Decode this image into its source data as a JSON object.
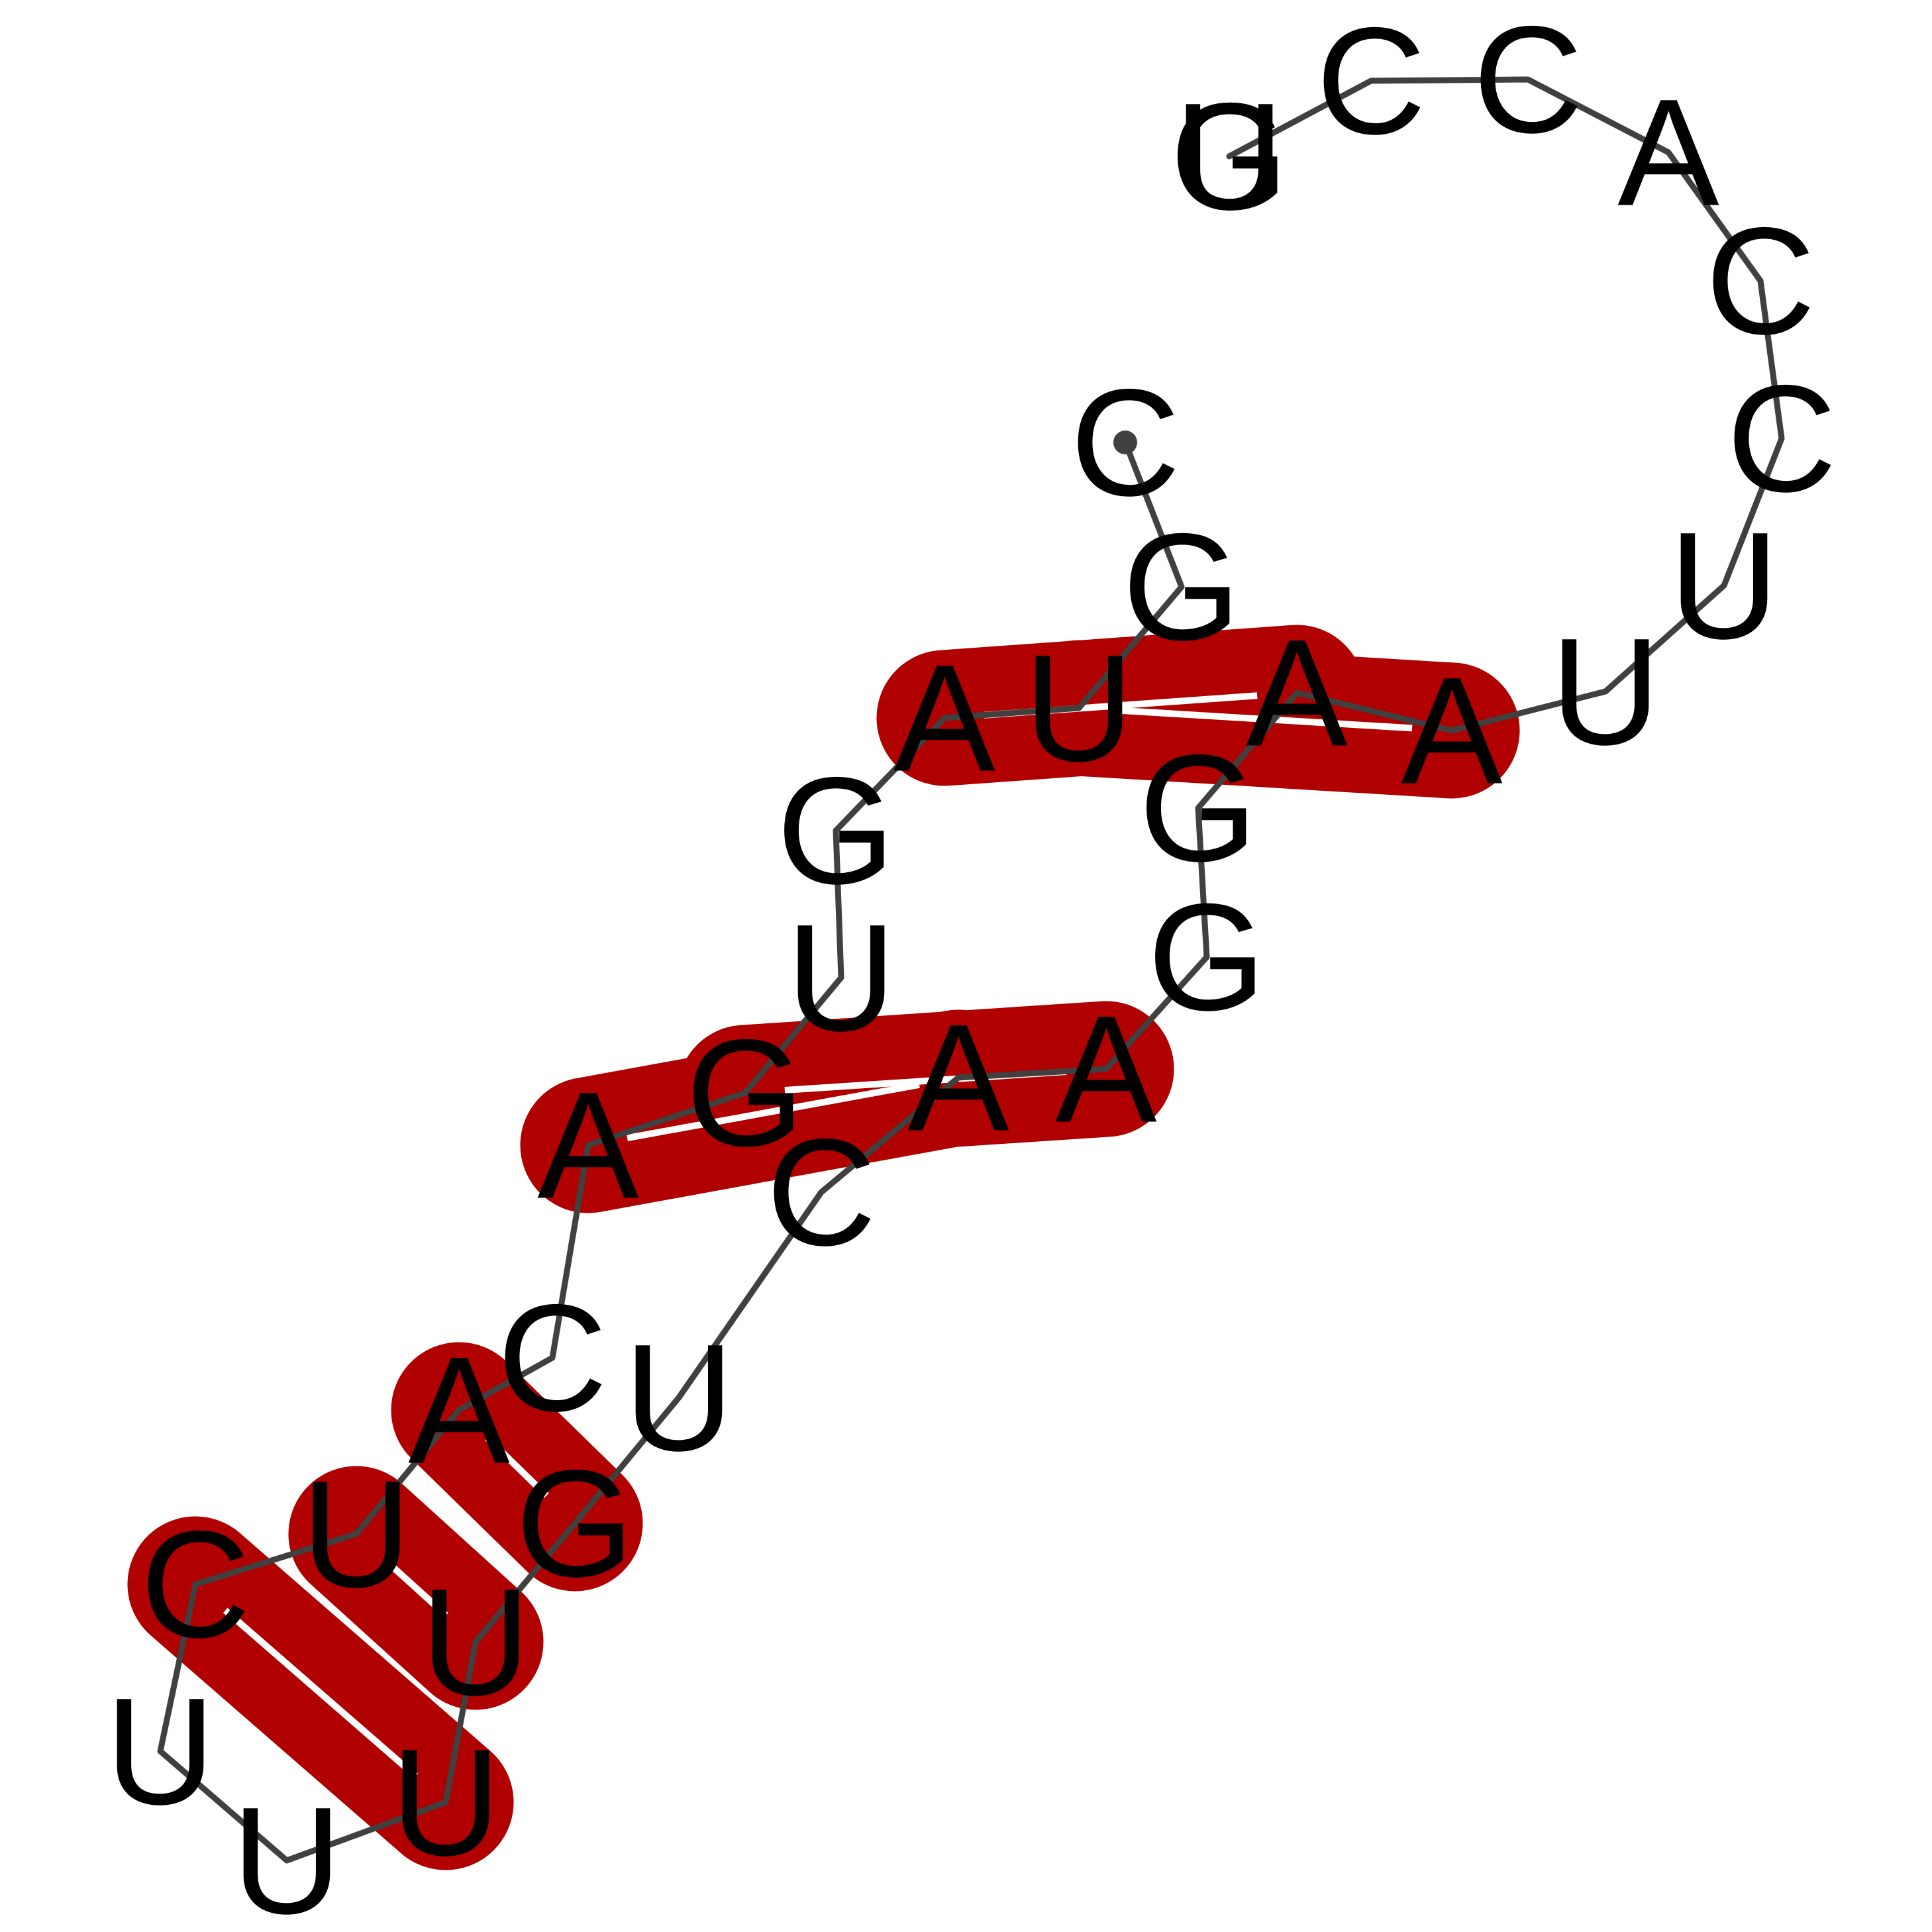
{
  "structure": {
    "sequence": [
      "C",
      "G",
      "U",
      "A",
      "G",
      "U",
      "G",
      "A",
      "C",
      "A",
      "U",
      "C",
      "U",
      "U",
      "U",
      "U",
      "G",
      "U",
      "C",
      "A",
      "A",
      "G",
      "G",
      "A",
      "A",
      "U",
      "U",
      "C",
      "C",
      "A",
      "C",
      "C",
      "G",
      "G",
      "U"
    ],
    "base_pairs": [
      [
        2,
        24
      ],
      [
        3,
        23
      ],
      [
        6,
        20
      ],
      [
        7,
        19
      ],
      [
        9,
        16
      ],
      [
        10,
        15
      ],
      [
        11,
        14
      ]
    ],
    "colors": {
      "backbone": "#404040",
      "pair_fill": "#b00000",
      "pair_bond": "#ffffff",
      "label": "#000000"
    }
  }
}
